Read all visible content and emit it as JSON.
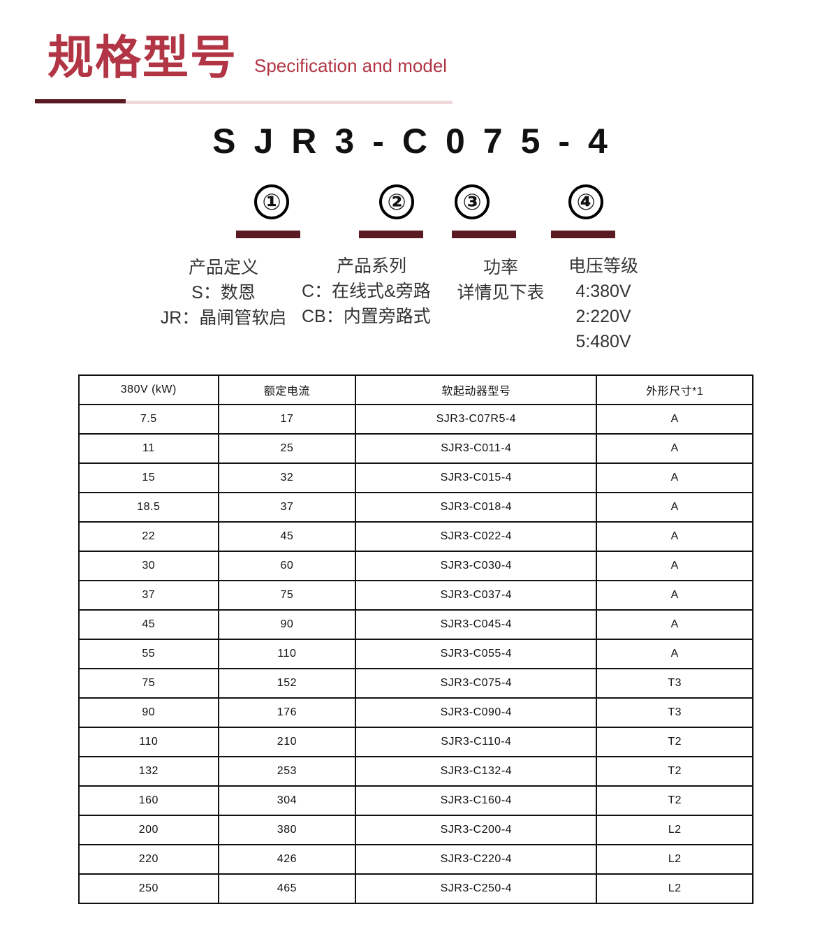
{
  "header": {
    "title_cn": "规格型号",
    "title_en": "Specification and model"
  },
  "model_code": "SJR3-C075-4",
  "parts": [
    {
      "number": "①",
      "title": "产品定义",
      "lines": [
        "S：数恩",
        "JR：晶闸管软启"
      ]
    },
    {
      "number": "②",
      "title": "产品系列",
      "lines": [
        "C：在线式&旁路",
        "CB：内置旁路式"
      ]
    },
    {
      "number": "③",
      "title": "功率",
      "lines": [
        "详情见下表"
      ]
    },
    {
      "number": "④",
      "title": "电压等级",
      "lines": [
        "4:380V",
        "2:220V",
        "5:480V"
      ]
    }
  ],
  "accent_color": "#b23545",
  "table": {
    "headers": [
      "380V (kW)",
      "额定电流",
      "软起动器型号",
      "外形尺寸*1"
    ],
    "rows": [
      [
        "7.5",
        "17",
        "SJR3-C07R5-4",
        "A"
      ],
      [
        "11",
        "25",
        "SJR3-C011-4",
        "A"
      ],
      [
        "15",
        "32",
        "SJR3-C015-4",
        "A"
      ],
      [
        "18.5",
        "37",
        "SJR3-C018-4",
        "A"
      ],
      [
        "22",
        "45",
        "SJR3-C022-4",
        "A"
      ],
      [
        "30",
        "60",
        "SJR3-C030-4",
        "A"
      ],
      [
        "37",
        "75",
        "SJR3-C037-4",
        "A"
      ],
      [
        "45",
        "90",
        "SJR3-C045-4",
        "A"
      ],
      [
        "55",
        "110",
        "SJR3-C055-4",
        "A"
      ],
      [
        "75",
        "152",
        "SJR3-C075-4",
        "T3"
      ],
      [
        "90",
        "176",
        "SJR3-C090-4",
        "T3"
      ],
      [
        "110",
        "210",
        "SJR3-C110-4",
        "T2"
      ],
      [
        "132",
        "253",
        "SJR3-C132-4",
        "T2"
      ],
      [
        "160",
        "304",
        "SJR3-C160-4",
        "T2"
      ],
      [
        "200",
        "380",
        "SJR3-C200-4",
        "L2"
      ],
      [
        "220",
        "426",
        "SJR3-C220-4",
        "L2"
      ],
      [
        "250",
        "465",
        "SJR3-C250-4",
        "L2"
      ]
    ]
  }
}
